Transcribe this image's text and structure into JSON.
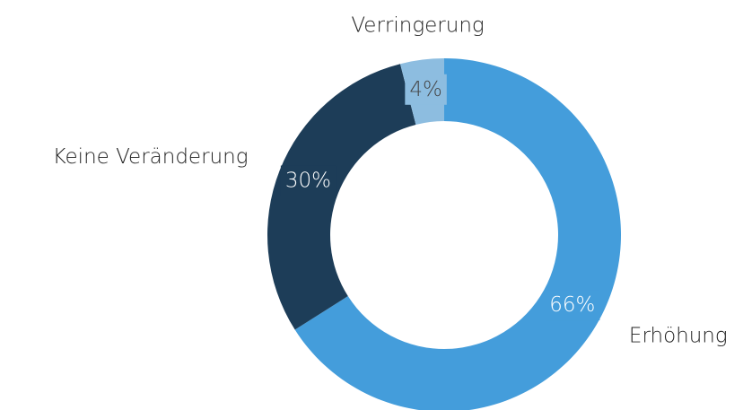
{
  "chart_data": {
    "type": "donut",
    "categories": [
      "Erhöhung",
      "Keine Veränderung",
      "Verringerung"
    ],
    "values": [
      66,
      30,
      4
    ],
    "value_labels": [
      "66%",
      "30%",
      "4%"
    ],
    "colors": [
      "#449ddb",
      "#1d3d58",
      "#8dbde0"
    ]
  }
}
